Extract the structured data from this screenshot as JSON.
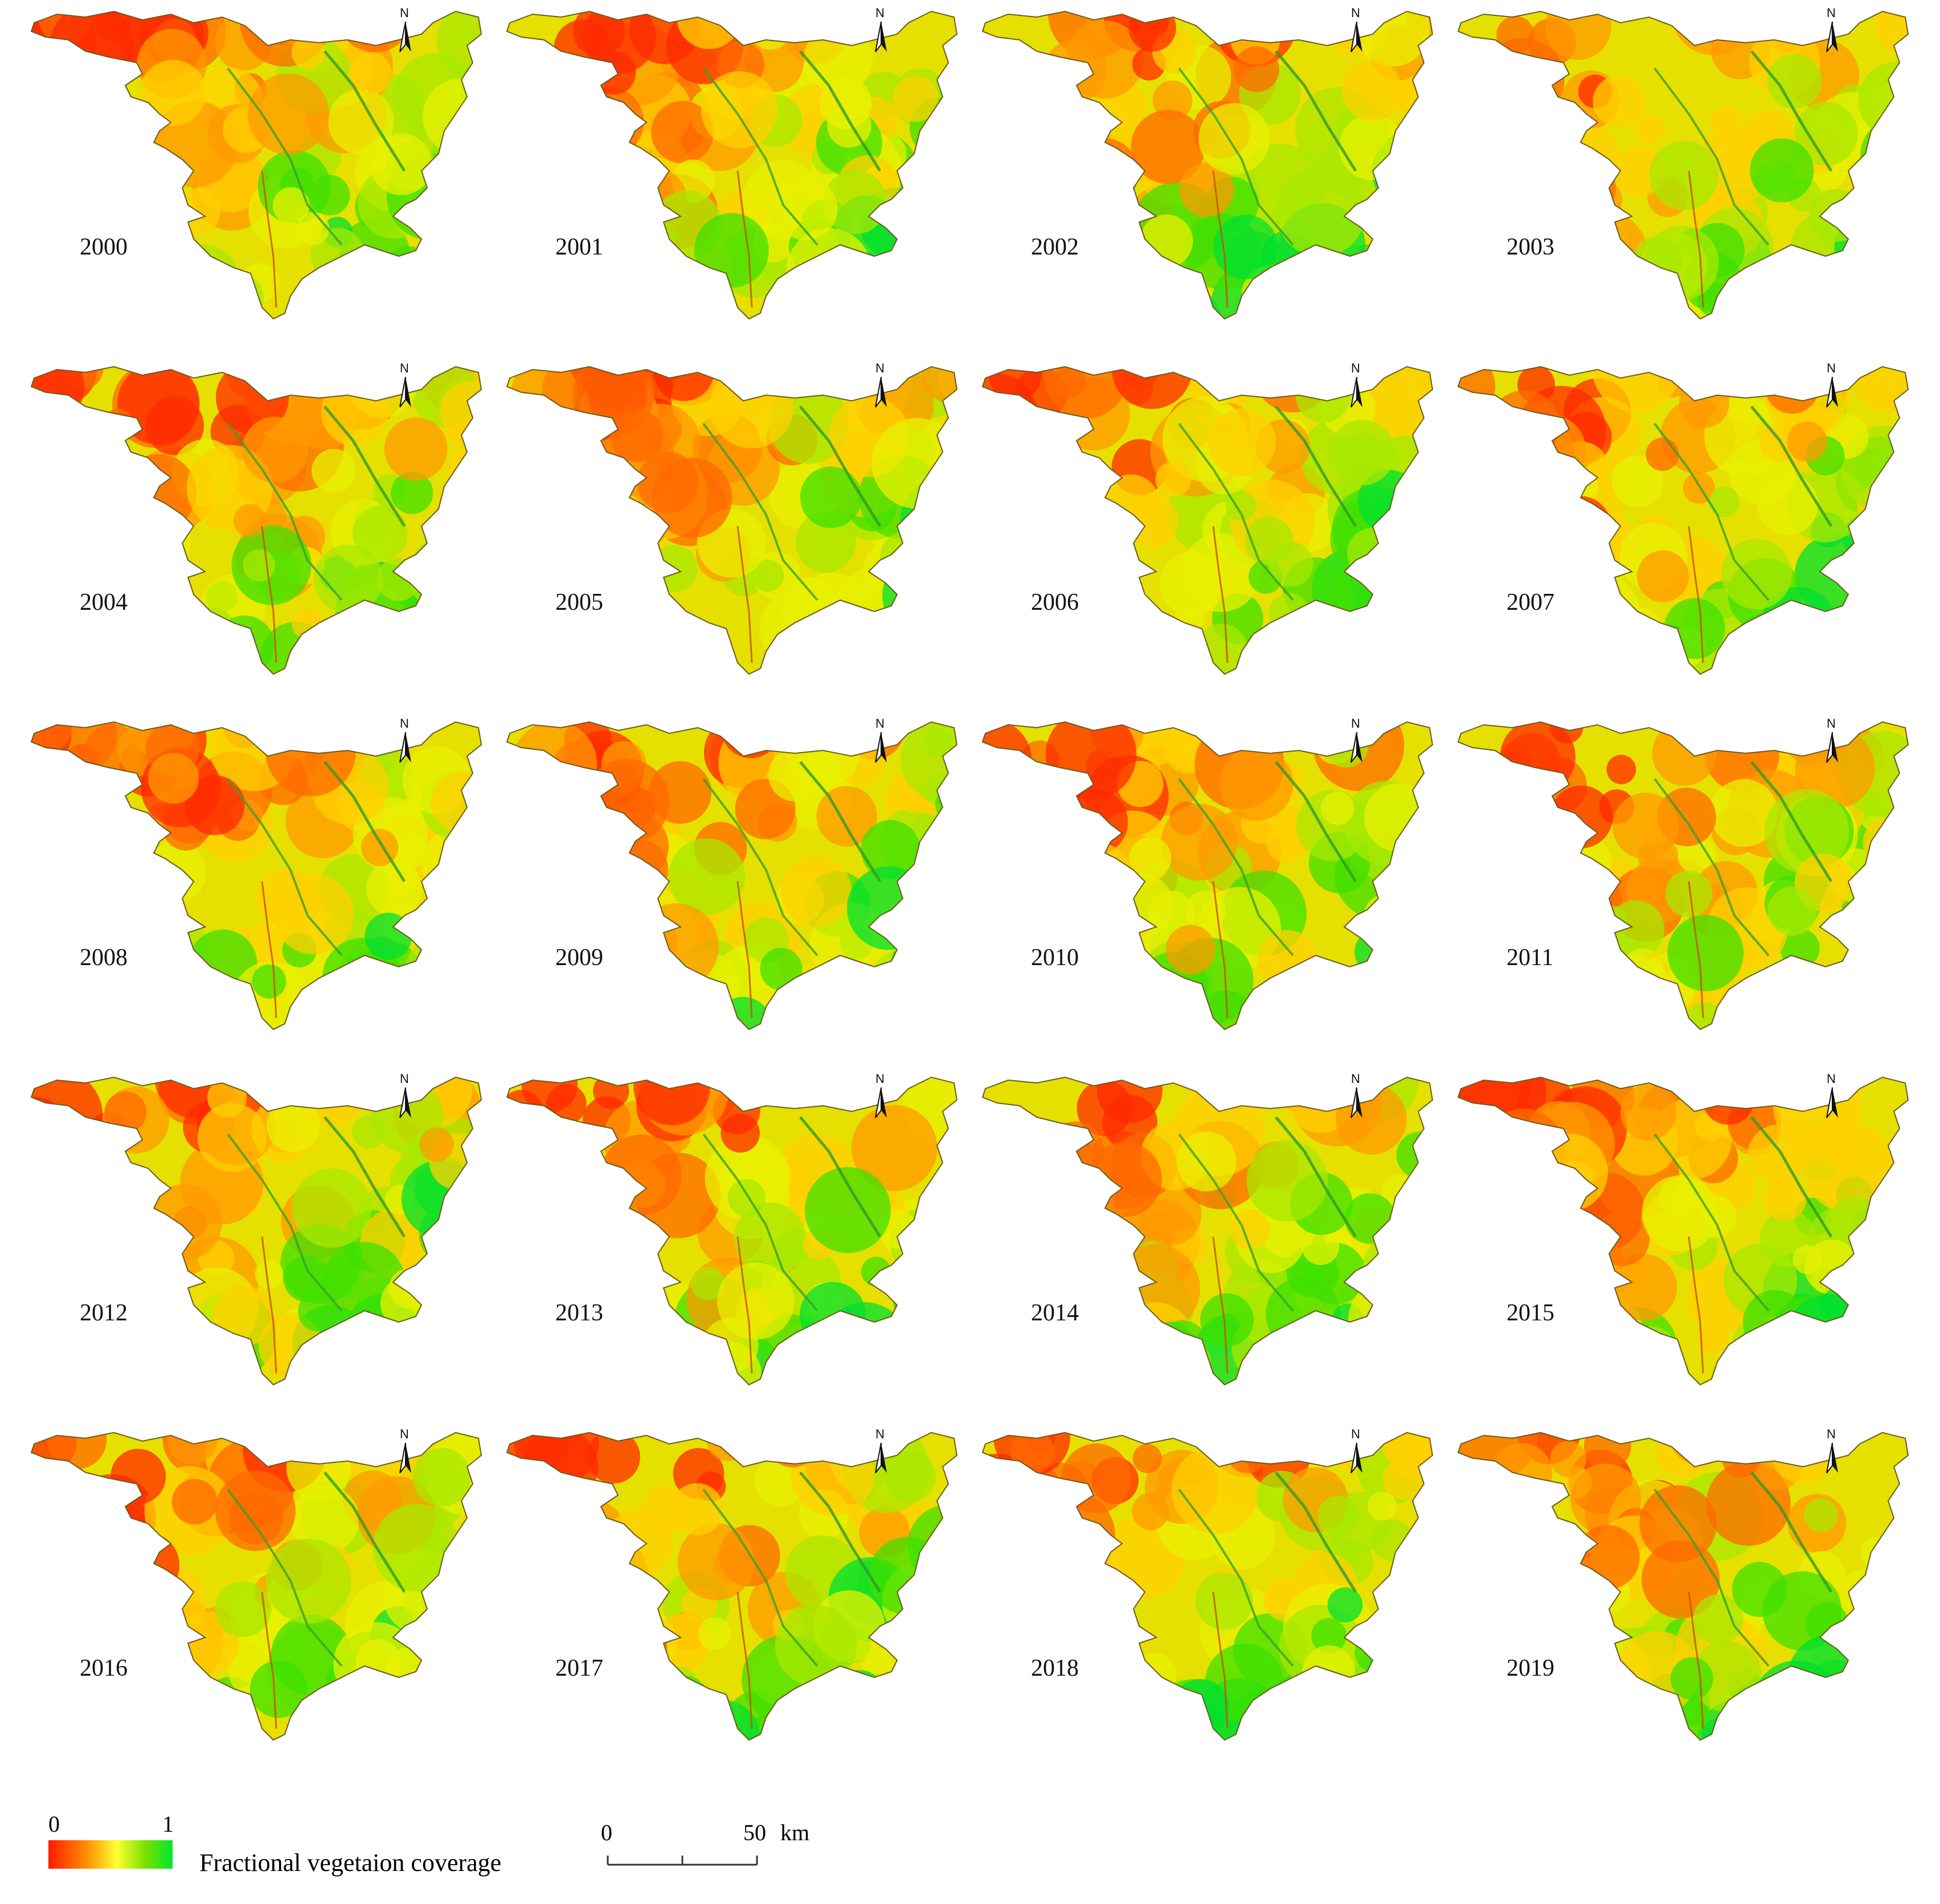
{
  "panels": [
    {
      "year": "2000"
    },
    {
      "year": "2001"
    },
    {
      "year": "2002"
    },
    {
      "year": "2003"
    },
    {
      "year": "2004"
    },
    {
      "year": "2005"
    },
    {
      "year": "2006"
    },
    {
      "year": "2007"
    },
    {
      "year": "2008"
    },
    {
      "year": "2009"
    },
    {
      "year": "2010"
    },
    {
      "year": "2011"
    },
    {
      "year": "2012"
    },
    {
      "year": "2013"
    },
    {
      "year": "2014"
    },
    {
      "year": "2015"
    },
    {
      "year": "2016"
    },
    {
      "year": "2017"
    },
    {
      "year": "2018"
    },
    {
      "year": "2019"
    }
  ],
  "north_arrow": {
    "label": "N"
  },
  "legend": {
    "min_label": "0",
    "max_label": "1",
    "title": "Fractional vegetaion coverage",
    "colors": [
      "#ff1a00",
      "#ff8c00",
      "#ffff33",
      "#7be000",
      "#00e62e"
    ]
  },
  "scale_bar": {
    "zero_label": "0",
    "end_label": "50",
    "unit": "km"
  }
}
